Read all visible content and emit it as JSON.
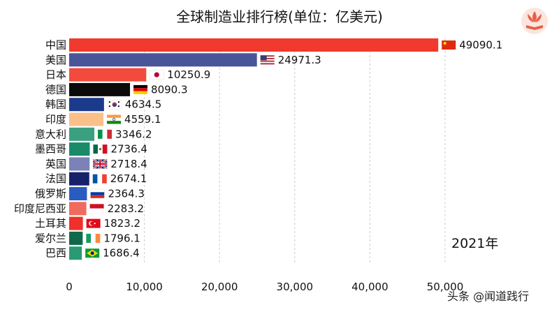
{
  "chart_data": {
    "type": "bar",
    "orientation": "horizontal",
    "title": "全球制造业排行榜(单位：亿美元)",
    "year_label": "2021年",
    "categories": [
      "中国",
      "美国",
      "日本",
      "德国",
      "韩国",
      "印度",
      "意大利",
      "墨西哥",
      "英国",
      "法国",
      "俄罗斯",
      "印度尼西亚",
      "土耳其",
      "爱尔兰",
      "巴西"
    ],
    "values": [
      49090.1,
      24971.3,
      10250.9,
      8090.3,
      4634.5,
      4559.1,
      3346.2,
      2736.4,
      2718.4,
      2674.1,
      2364.3,
      2283.2,
      1823.2,
      1796.1,
      1686.4
    ],
    "value_labels": [
      "49090.1",
      "24971.3",
      "10250.9",
      "8090.3",
      "4634.5",
      "4559.1",
      "3346.2",
      "2736.4",
      "2718.4",
      "2674.1",
      "2364.3",
      "2283.2",
      "1823.2",
      "1796.1",
      "1686.4"
    ],
    "colors": [
      "#f03a2e",
      "#4a5498",
      "#f24a3c",
      "#0a0a0a",
      "#1b3a8c",
      "#fbbf8a",
      "#3aa080",
      "#1a8a6a",
      "#7a82b8",
      "#16216a",
      "#2a5cc0",
      "#f06a5e",
      "#f0302a",
      "#0e6a4a",
      "#2a9a74"
    ],
    "flags": [
      "china",
      "usa",
      "japan",
      "germany",
      "korea",
      "india",
      "italy",
      "mexico",
      "uk",
      "france",
      "russia",
      "indonesia",
      "turkey",
      "ireland",
      "brazil"
    ],
    "xlim": [
      0,
      50000
    ],
    "xticks": [
      0,
      10000,
      20000,
      30000,
      40000,
      50000
    ],
    "xtick_labels": [
      "0",
      "10,000",
      "20,000",
      "30,000",
      "40,000",
      "50,000"
    ],
    "grid": "vertical dashed"
  },
  "watermark": "头条 @闻道践行",
  "logo_icon": "lotus-book-logo-icon"
}
